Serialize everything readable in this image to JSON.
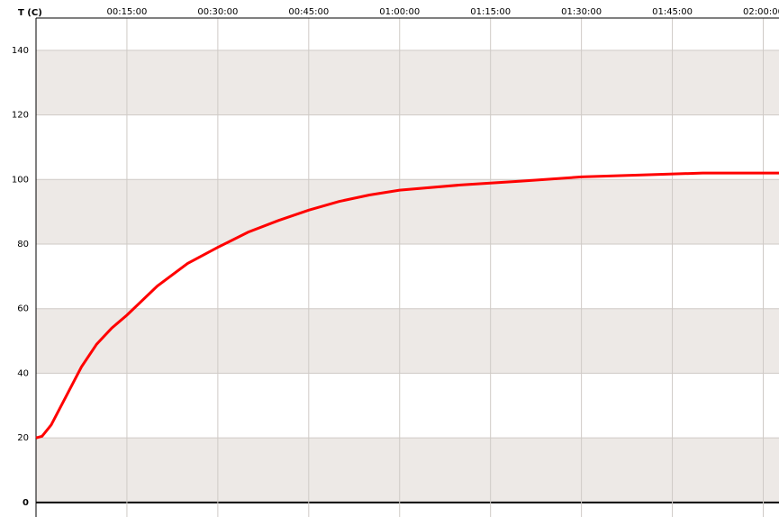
{
  "chart_data": {
    "type": "line",
    "y_label": "T (C)",
    "x": [
      0,
      1,
      2.5,
      5,
      7.5,
      10,
      12.5,
      15,
      20,
      25,
      30,
      35,
      40,
      45,
      50,
      55,
      60,
      70,
      80,
      90,
      100,
      110,
      122.6
    ],
    "series": [
      {
        "name": "T",
        "color": "#ff0000",
        "values": [
          20,
          20.5,
          24,
          33,
          42,
          49,
          54,
          58,
          67,
          74,
          79,
          83.7,
          87.3,
          90.5,
          93.2,
          95.2,
          96.7,
          98.3,
          99.5,
          100.8,
          101.4,
          102,
          102
        ]
      }
    ],
    "xlim": [
      0,
      122.6
    ],
    "xticks": [
      {
        "value": 15,
        "label": "00:15:00"
      },
      {
        "value": 30,
        "label": "00:30:00"
      },
      {
        "value": 45,
        "label": "00:45:00"
      },
      {
        "value": 60,
        "label": "01:00:00"
      },
      {
        "value": 75,
        "label": "01:15:00"
      },
      {
        "value": 90,
        "label": "01:30:00"
      },
      {
        "value": 105,
        "label": "01:45:00"
      },
      {
        "value": 120,
        "label": "02:00:00"
      }
    ],
    "ylim": [
      -4.5,
      150
    ],
    "yticks": [
      0,
      20,
      40,
      60,
      80,
      100,
      120,
      140
    ],
    "grid": true,
    "band_color": "#ede9e6"
  }
}
